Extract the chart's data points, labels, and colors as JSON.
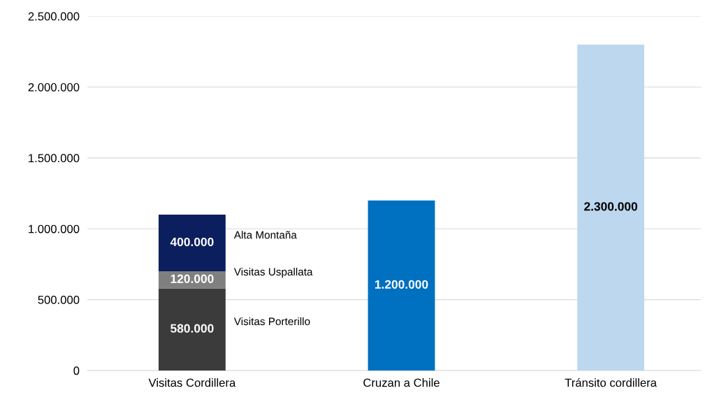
{
  "chart_data": {
    "type": "bar",
    "stacked": true,
    "categories": [
      "Visitas Cordillera",
      "Cruzan a Chile",
      "Tránsito cordillera"
    ],
    "series": [
      {
        "name": "Visitas Porterillo",
        "color": "#3b3b3b",
        "values": [
          580000,
          null,
          null
        ],
        "value_labels": [
          "580.000",
          null,
          null
        ]
      },
      {
        "name": "Visitas Uspallata",
        "color": "#808080",
        "values": [
          120000,
          null,
          null
        ],
        "value_labels": [
          "120.000",
          null,
          null
        ]
      },
      {
        "name": "Alta Montaña",
        "color": "#0b1f5e",
        "values": [
          400000,
          null,
          null
        ],
        "value_labels": [
          "400.000",
          null,
          null
        ]
      },
      {
        "color": "#0070c0",
        "values": [
          null,
          1200000,
          null
        ],
        "value_labels": [
          null,
          "1.200.000",
          null
        ]
      },
      {
        "color": "#bdd7ee",
        "values": [
          null,
          null,
          2300000
        ],
        "value_labels": [
          null,
          null,
          "2.300.000"
        ]
      }
    ],
    "ylim": [
      0,
      2500000
    ],
    "yticks": [
      {
        "value": 0,
        "label": "0"
      },
      {
        "value": 500000,
        "label": "500.000"
      },
      {
        "value": 1000000,
        "label": "1.000.000"
      },
      {
        "value": 1500000,
        "label": "1.500.000"
      },
      {
        "value": 2000000,
        "label": "2.000.000"
      },
      {
        "value": 2500000,
        "label": "2.500.000"
      }
    ],
    "grid": "y",
    "legend": false
  }
}
